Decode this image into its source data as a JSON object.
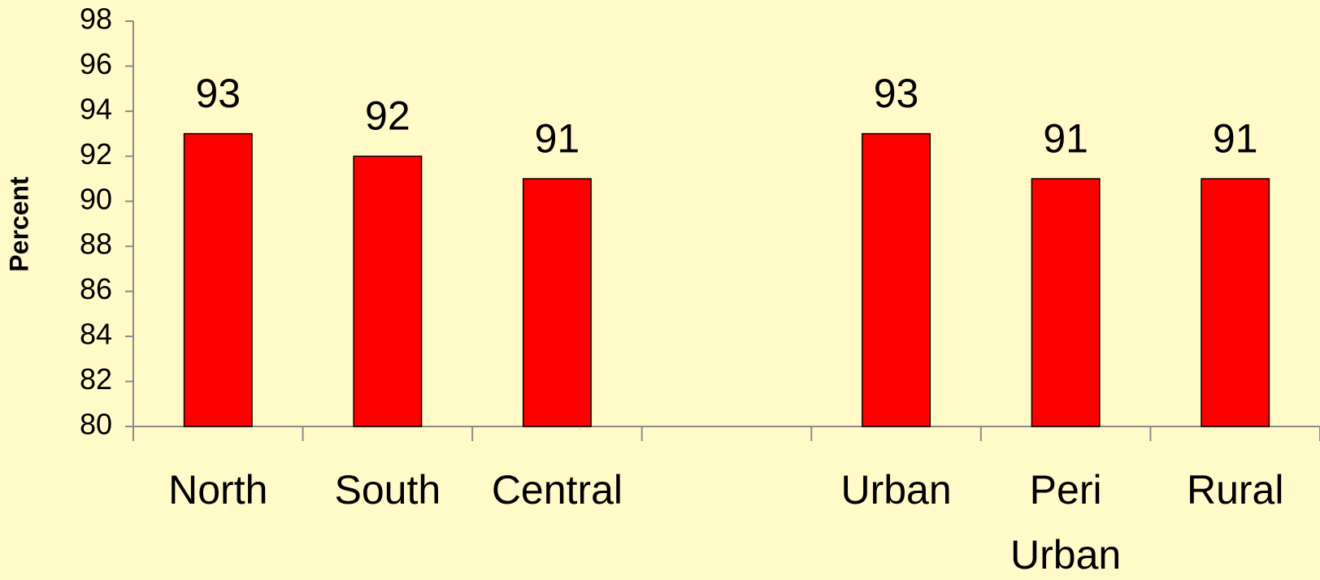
{
  "chart_data": {
    "type": "bar",
    "y_label": "Percent",
    "categories": [
      "North",
      "South",
      "Central",
      null,
      "Urban",
      "Peri Urban",
      "Rural"
    ],
    "values": [
      93,
      92,
      91,
      null,
      93,
      91,
      91
    ],
    "color": "#ff0000",
    "ylim": [
      80,
      98
    ],
    "yticks": [
      80,
      82,
      84,
      86,
      88,
      90,
      92,
      94,
      96,
      98
    ],
    "grid": false
  }
}
